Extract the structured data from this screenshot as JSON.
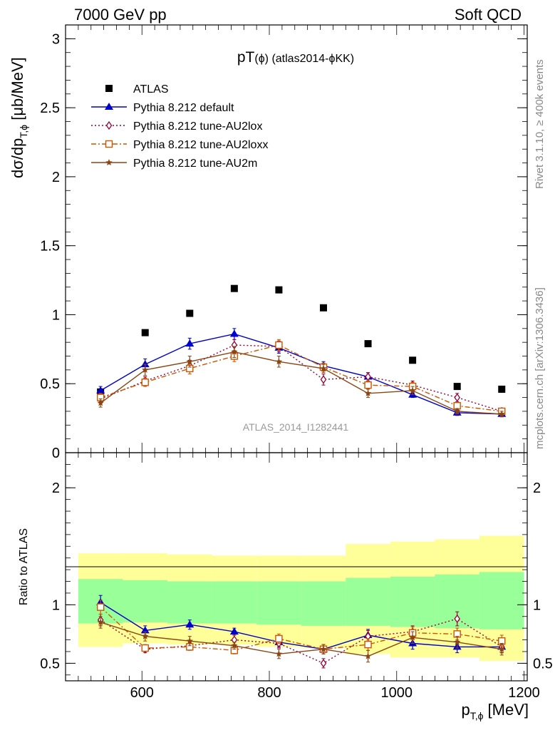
{
  "header": {
    "left": "7000 GeV pp",
    "right": "Soft QCD"
  },
  "side": {
    "rivet": "Rivet 3.1.10, ≥ 400k events",
    "mcplots": "mcplots.cern.ch [arXiv:1306.3436]"
  },
  "chart_data": [
    {
      "type": "scatter",
      "title": "pT(ϕ) (atlas2014-ϕKK)",
      "title_main": "pT",
      "title_sub": "(ϕ) (atlas2014-ϕKK)",
      "watermark": "ATLAS_2014_I1282441",
      "ylabel": "dσ/dp_{T,ϕ} [μb/MeV]",
      "ylabel_main": "dσ/dp",
      "ylabel_sub": "T,ϕ",
      "ylabel_unit": " [μb/MeV]",
      "xlim": [
        480,
        1205
      ],
      "ylim": [
        0,
        3.1
      ],
      "y_ticks": [
        {
          "v": 0,
          "label": "0"
        },
        {
          "v": 0.5,
          "label": "0.5"
        },
        {
          "v": 1,
          "label": "1"
        },
        {
          "v": 1.5,
          "label": "1.5"
        },
        {
          "v": 2,
          "label": "2"
        },
        {
          "v": 2.5,
          "label": "2.5"
        },
        {
          "v": 3,
          "label": "3"
        }
      ],
      "legend_position": "top-left",
      "x": [
        535,
        605,
        675,
        745,
        815,
        885,
        955,
        1025,
        1095,
        1165
      ],
      "series": [
        {
          "name": "ATLAS",
          "color": "#000000",
          "marker": "square-filled",
          "line": "none",
          "values": [
            0.44,
            0.87,
            1.01,
            1.19,
            1.18,
            1.05,
            0.79,
            0.67,
            0.48,
            0.46
          ]
        },
        {
          "name": "Pythia 8.212 default",
          "color": "#0000cc",
          "marker": "triangle-filled",
          "line": "solid",
          "values": [
            0.45,
            0.64,
            0.79,
            0.86,
            0.76,
            0.63,
            0.55,
            0.42,
            0.29,
            0.28
          ],
          "errors": [
            0.03,
            0.04,
            0.04,
            0.04,
            0.04,
            0.03,
            0.03,
            0.02,
            0.02,
            0.02
          ]
        },
        {
          "name": "Pythia 8.212 tune-AU2lox",
          "color": "#990033",
          "marker": "diamond-open",
          "line": "dotted",
          "values": [
            0.39,
            0.52,
            0.63,
            0.78,
            0.77,
            0.53,
            0.55,
            0.49,
            0.4,
            0.3
          ],
          "errors": [
            0.03,
            0.03,
            0.04,
            0.04,
            0.04,
            0.04,
            0.03,
            0.03,
            0.03,
            0.02
          ]
        },
        {
          "name": "Pythia 8.212 tune-AU2loxx",
          "color": "#cc5500",
          "marker": "square-open",
          "line": "dashdot",
          "values": [
            0.4,
            0.51,
            0.61,
            0.7,
            0.78,
            0.62,
            0.49,
            0.48,
            0.34,
            0.3
          ],
          "errors": [
            0.03,
            0.03,
            0.04,
            0.04,
            0.04,
            0.03,
            0.03,
            0.03,
            0.02,
            0.02
          ]
        },
        {
          "name": "Pythia 8.212 tune-AU2m",
          "color": "#8b4513",
          "marker": "star",
          "line": "solid",
          "values": [
            0.36,
            0.6,
            0.66,
            0.73,
            0.66,
            0.61,
            0.43,
            0.45,
            0.3,
            0.28
          ],
          "errors": [
            0.03,
            0.04,
            0.04,
            0.04,
            0.04,
            0.03,
            0.03,
            0.03,
            0.02,
            0.02
          ]
        }
      ]
    },
    {
      "type": "scatter",
      "ylabel": "Ratio to ATLAS",
      "xlabel": "p_{T,ϕ} [MeV]",
      "xlabel_main": "p",
      "xlabel_sub": "T,ϕ",
      "xlabel_unit": " [MeV]",
      "xlim": [
        480,
        1205
      ],
      "ylim": [
        0.35,
        2.3
      ],
      "x_ticks": [
        {
          "v": 600,
          "label": "600"
        },
        {
          "v": 800,
          "label": "800"
        },
        {
          "v": 1000,
          "label": "1000"
        },
        {
          "v": 1200,
          "label": "1200"
        }
      ],
      "y_ticks": [
        {
          "v": 0.5,
          "label": "0.5"
        },
        {
          "v": 1,
          "label": "1"
        },
        {
          "v": 2,
          "label": "2"
        }
      ],
      "bands": {
        "edges": [
          500,
          570,
          640,
          710,
          780,
          850,
          920,
          990,
          1060,
          1130,
          1200
        ],
        "yellow_low": [
          0.64,
          0.67,
          0.66,
          0.66,
          0.64,
          0.63,
          0.58,
          0.55,
          0.55,
          0.52
        ],
        "yellow_high": [
          1.44,
          1.44,
          1.43,
          1.42,
          1.42,
          1.42,
          1.52,
          1.54,
          1.56,
          1.59
        ],
        "green_low": [
          0.84,
          0.85,
          0.84,
          0.84,
          0.83,
          0.82,
          0.82,
          0.81,
          0.8,
          0.79
        ],
        "green_high": [
          1.22,
          1.21,
          1.2,
          1.2,
          1.2,
          1.2,
          1.23,
          1.24,
          1.26,
          1.28
        ]
      },
      "x": [
        535,
        605,
        675,
        745,
        815,
        885,
        955,
        1025,
        1095,
        1165
      ],
      "series": [
        {
          "name": "Pythia 8.212 default",
          "color": "#0000cc",
          "marker": "triangle-filled",
          "line": "solid",
          "values": [
            1.02,
            0.78,
            0.83,
            0.77,
            0.68,
            0.62,
            0.74,
            0.67,
            0.64,
            0.64
          ],
          "errors": [
            0.06,
            0.04,
            0.04,
            0.03,
            0.04,
            0.04,
            0.05,
            0.05,
            0.05,
            0.05
          ]
        },
        {
          "name": "Pythia 8.212 tune-AU2lox",
          "color": "#990033",
          "marker": "diamond-open",
          "line": "dotted",
          "values": [
            0.87,
            0.62,
            0.65,
            0.7,
            0.67,
            0.5,
            0.73,
            0.77,
            0.88,
            0.64
          ],
          "errors": [
            0.05,
            0.03,
            0.03,
            0.04,
            0.04,
            0.04,
            0.05,
            0.05,
            0.06,
            0.05
          ]
        },
        {
          "name": "Pythia 8.212 tune-AU2loxx",
          "color": "#cc5500",
          "marker": "square-open",
          "line": "dashdot",
          "values": [
            0.98,
            0.63,
            0.64,
            0.61,
            0.71,
            0.62,
            0.66,
            0.76,
            0.75,
            0.69
          ],
          "errors": [
            0.06,
            0.03,
            0.03,
            0.03,
            0.04,
            0.04,
            0.05,
            0.05,
            0.05,
            0.05
          ]
        },
        {
          "name": "Pythia 8.212 tune-AU2m",
          "color": "#8b4513",
          "marker": "star",
          "line": "solid",
          "values": [
            0.85,
            0.73,
            0.69,
            0.65,
            0.58,
            0.62,
            0.56,
            0.72,
            0.68,
            0.62
          ],
          "errors": [
            0.05,
            0.04,
            0.04,
            0.03,
            0.04,
            0.04,
            0.05,
            0.05,
            0.05,
            0.05
          ]
        }
      ]
    }
  ]
}
